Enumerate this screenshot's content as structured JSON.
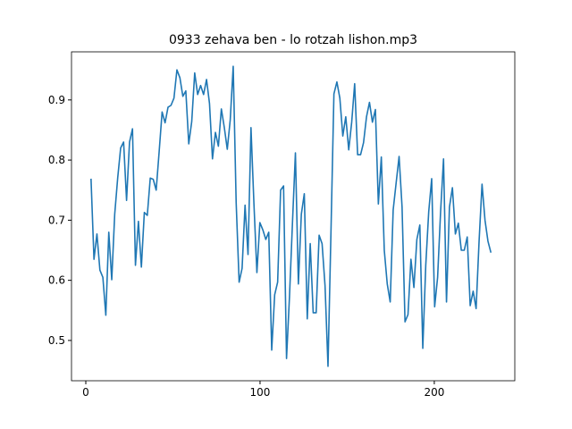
{
  "chart_data": {
    "type": "line",
    "title": "0933 zehava ben - lo rotzah lishon.mp3",
    "x": [
      3.0,
      4.7,
      6.4,
      8.1,
      9.8,
      11.5,
      13.2,
      14.9,
      16.6,
      18.3,
      20.0,
      21.7,
      23.4,
      25.1,
      26.8,
      28.5,
      30.2,
      31.9,
      33.6,
      35.3,
      37.0,
      38.7,
      40.4,
      42.1,
      43.8,
      45.5,
      47.2,
      48.9,
      50.6,
      52.3,
      54.0,
      55.7,
      57.4,
      59.1,
      60.8,
      62.5,
      64.2,
      65.9,
      67.6,
      69.3,
      71.0,
      72.7,
      74.4,
      76.1,
      77.8,
      79.5,
      81.2,
      82.9,
      84.6,
      86.3,
      88.0,
      89.7,
      91.4,
      93.1,
      94.8,
      96.5,
      98.2,
      99.9,
      101.6,
      103.3,
      105.0,
      106.7,
      108.4,
      110.1,
      111.8,
      113.5,
      115.2,
      116.9,
      118.6,
      120.3,
      122.0,
      123.7,
      125.4,
      127.1,
      128.8,
      130.5,
      132.2,
      133.9,
      135.6,
      137.3,
      139.0,
      140.7,
      142.4,
      144.1,
      145.8,
      147.5,
      149.2,
      150.9,
      152.6,
      154.3,
      156.0,
      157.7,
      159.4,
      161.1,
      162.8,
      164.5,
      166.2,
      167.9,
      169.6,
      171.3,
      173.0,
      174.7,
      176.4,
      178.1,
      179.8,
      181.5,
      183.2,
      184.9,
      186.6,
      188.3,
      190.0,
      191.7,
      193.4,
      195.1,
      196.8,
      198.5,
      200.2,
      201.9,
      203.6,
      205.3,
      207.0,
      208.7,
      210.4,
      212.1,
      213.8,
      215.5,
      217.2,
      218.9,
      220.6,
      222.3,
      224.0,
      225.7,
      227.4,
      229.1,
      230.8,
      232.5
    ],
    "series": [
      {
        "color": "#1f77b4",
        "values": [
          0.769,
          0.635,
          0.677,
          0.617,
          0.605,
          0.542,
          0.68,
          0.601,
          0.71,
          0.77,
          0.82,
          0.83,
          0.733,
          0.83,
          0.852,
          0.625,
          0.698,
          0.622,
          0.713,
          0.708,
          0.77,
          0.768,
          0.75,
          0.814,
          0.88,
          0.862,
          0.888,
          0.891,
          0.903,
          0.95,
          0.937,
          0.906,
          0.915,
          0.827,
          0.864,
          0.945,
          0.909,
          0.924,
          0.909,
          0.934,
          0.894,
          0.802,
          0.846,
          0.823,
          0.885,
          0.854,
          0.818,
          0.867,
          0.956,
          0.729,
          0.597,
          0.62,
          0.725,
          0.643,
          0.854,
          0.727,
          0.613,
          0.696,
          0.684,
          0.668,
          0.68,
          0.484,
          0.576,
          0.597,
          0.75,
          0.757,
          0.47,
          0.573,
          0.695,
          0.812,
          0.594,
          0.71,
          0.744,
          0.536,
          0.661,
          0.546,
          0.546,
          0.675,
          0.661,
          0.591,
          0.457,
          0.68,
          0.91,
          0.93,
          0.903,
          0.84,
          0.872,
          0.817,
          0.863,
          0.927,
          0.809,
          0.809,
          0.829,
          0.872,
          0.896,
          0.863,
          0.884,
          0.727,
          0.805,
          0.65,
          0.594,
          0.564,
          0.717,
          0.762,
          0.806,
          0.722,
          0.531,
          0.543,
          0.635,
          0.588,
          0.668,
          0.692,
          0.487,
          0.625,
          0.714,
          0.769,
          0.556,
          0.605,
          0.713,
          0.802,
          0.564,
          0.722,
          0.754,
          0.677,
          0.695,
          0.65,
          0.65,
          0.672,
          0.558,
          0.582,
          0.553,
          0.665,
          0.76,
          0.7,
          0.665,
          0.646
        ]
      }
    ],
    "xlim": [
      -8.2,
      246.2
    ],
    "xticks": [
      0,
      100,
      200
    ],
    "ylim": [
      0.433,
      0.98
    ],
    "yticks": [
      0.5,
      0.6,
      0.7,
      0.8,
      0.9
    ]
  }
}
